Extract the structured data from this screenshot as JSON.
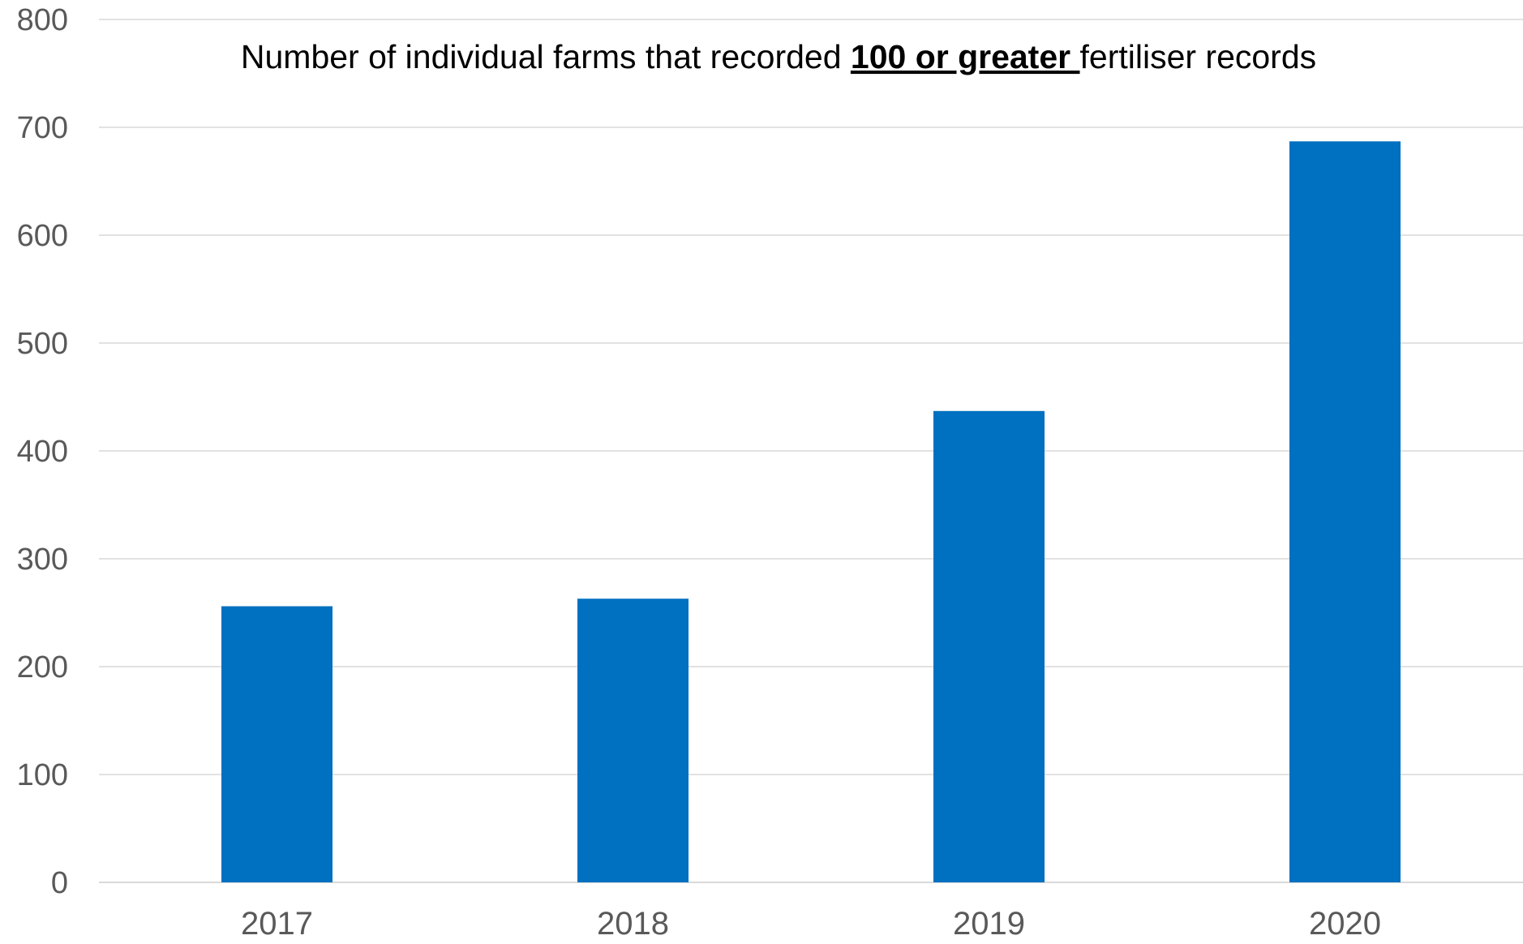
{
  "chart_data": {
    "type": "bar",
    "title": {
      "prefix": "Number of individual farms that recorded ",
      "emphasis": "100 or greater ",
      "suffix": "fertiliser records"
    },
    "xlabel": "",
    "ylabel": "",
    "categories": [
      "2017",
      "2018",
      "2019",
      "2020"
    ],
    "values": [
      256,
      263,
      437,
      687
    ],
    "ylim": [
      0,
      800
    ],
    "yticks": [
      0,
      100,
      200,
      300,
      400,
      500,
      600,
      700,
      800
    ],
    "grid": true,
    "legend": "none",
    "bar_color": "#0070C0",
    "grid_color": "#D9D9D9",
    "tick_color": "#595959"
  }
}
